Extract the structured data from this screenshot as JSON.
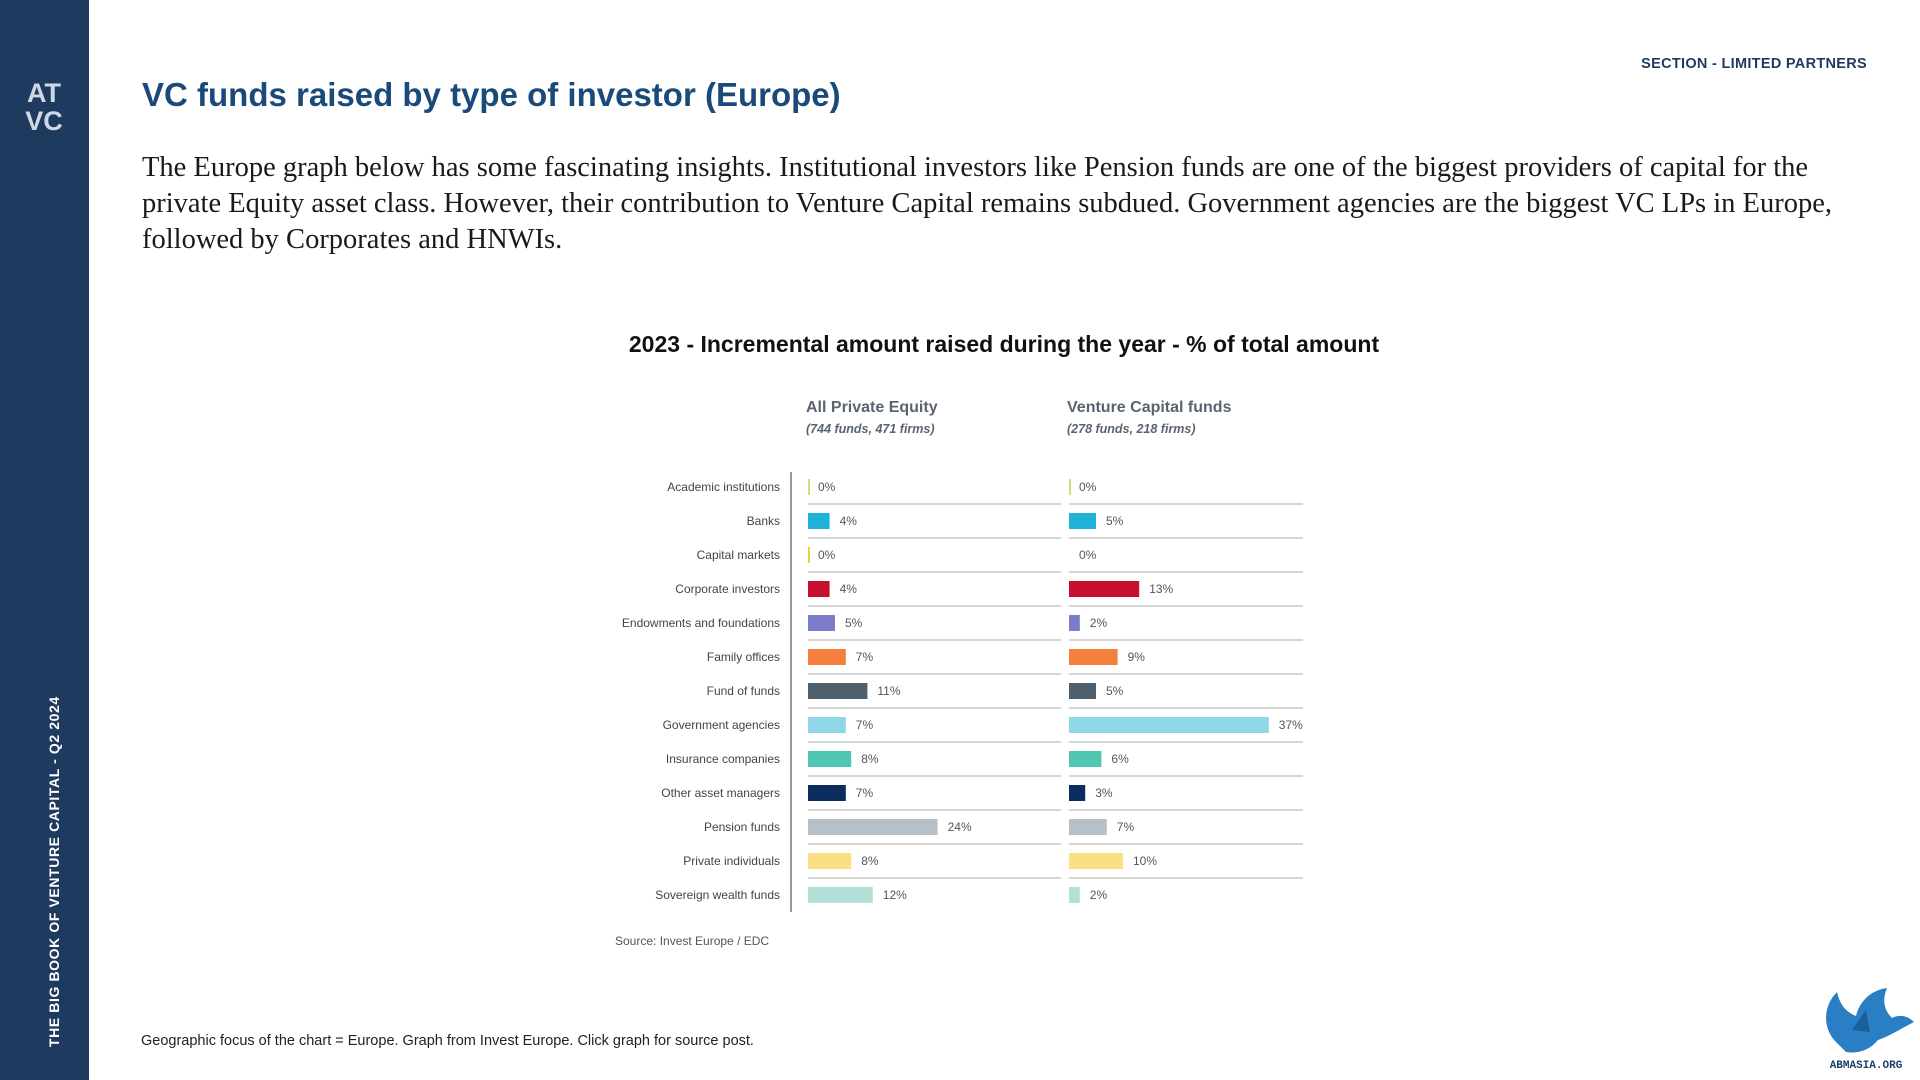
{
  "sidebar": {
    "vertical_text": "THE BIG BOOK OF VENTURE CAPITAL - Q2 2024",
    "logo_text": "ATVC"
  },
  "header": {
    "section": "SECTION - LIMITED PARTNERS"
  },
  "title": "VC funds raised by type of investor (Europe)",
  "intro": "The Europe graph below has some fascinating insights. Institutional investors like Pension funds are one of the biggest providers of capital for the private Equity asset class. However, their contribution to Venture Capital remains subdued. Government agencies are the biggest VC LPs in Europe, followed by Corporates and HNWIs.",
  "footnote": "Geographic focus of the chart = Europe. Graph from Invest Europe. Click graph for source post.",
  "watermark_text": "ABMASIA.ORG",
  "colors": {
    "sidebar": "#1f3a5f",
    "title": "#1a4a7a",
    "accent": "#1f3a5f"
  },
  "chart_data": {
    "type": "bar",
    "orientation": "horizontal",
    "title": "2023 - Incremental amount raised during the year - % of total amount",
    "source": "Source: Invest Europe / EDC",
    "unit": "%",
    "categories": [
      "Academic institutions",
      "Banks",
      "Capital markets",
      "Corporate investors",
      "Endowments and foundations",
      "Family offices",
      "Fund of funds",
      "Government agencies",
      "Insurance companies",
      "Other asset managers",
      "Pension funds",
      "Private individuals",
      "Sovereign wealth funds"
    ],
    "category_colors": [
      "#d9d97a",
      "#1fb3d9",
      "#f2c94c",
      "#c8102e",
      "#7b7bc9",
      "#f57f3d",
      "#4f5f6e",
      "#8fd6e8",
      "#4fc7b0",
      "#0a2d5e",
      "#b5c0c9",
      "#fbdf85",
      "#b3e0d6"
    ],
    "series": [
      {
        "name": "All Private Equity",
        "subtitle": "(744 funds, 471 firms)",
        "values": [
          0,
          4,
          0,
          4,
          5,
          7,
          11,
          7,
          8,
          7,
          24,
          8,
          12
        ]
      },
      {
        "name": "Venture Capital funds",
        "subtitle": "(278 funds, 218 firms)",
        "values": [
          0,
          5,
          0,
          13,
          2,
          9,
          5,
          37,
          6,
          3,
          7,
          10,
          2
        ]
      }
    ],
    "grid": true,
    "legend": "none"
  }
}
